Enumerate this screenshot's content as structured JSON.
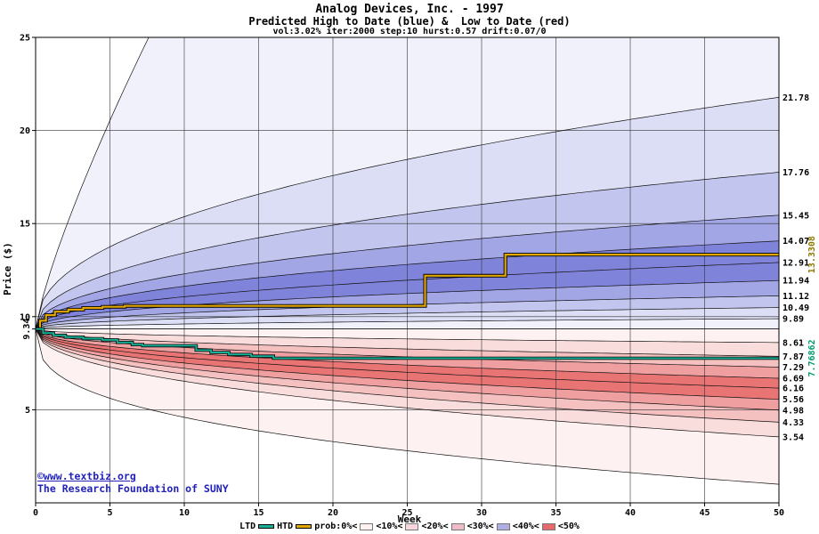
{
  "header": {
    "title": "Analog Devices, Inc. - 1997",
    "subtitle": "Predicted High to Date (blue) &  Low to Date (red)",
    "params": "vol:3.02% iter:2000 step:10 hurst:0.57 drift:0.07/0"
  },
  "watermark": {
    "line1": "©www.textbiz.org",
    "line2": "The Research Foundation of SUNY"
  },
  "chart_data": {
    "type": "area",
    "title": "Analog Devices, Inc. - 1997",
    "subtitle": "Predicted High to Date (blue) &  Low to Date (red)",
    "params_line": "vol:3.02% iter:2000 step:10 hurst:0.57 drift:0.07/0",
    "xlabel": "Week",
    "ylabel": "Price ($)",
    "xlim": [
      0,
      50
    ],
    "ylim": [
      0,
      25
    ],
    "grid": true,
    "x_ticks": [
      0,
      5,
      10,
      15,
      20,
      25,
      30,
      35,
      40,
      45,
      50
    ],
    "x_tick_labels": [
      "0",
      "5",
      "10",
      "15",
      "20",
      "25",
      "30",
      "35",
      "40",
      "45",
      "50"
    ],
    "y_ticks": [
      5,
      10,
      15,
      20,
      25
    ],
    "y_tick_labels": [
      "5",
      "10",
      "15",
      "20",
      "25"
    ],
    "start_price": 9.34,
    "start_label": "9.34",
    "quantile_alpha": 0.45,
    "envelope": {
      "top_end": 80,
      "top_alpha": 0.8,
      "bottom_end": 1.0,
      "bottom_alpha": 0.35
    },
    "high_quantiles": {
      "ends": [
        21.78,
        17.76,
        15.45,
        14.07,
        12.91,
        11.94,
        11.12,
        10.49,
        9.89
      ],
      "labels": [
        "21.78",
        "17.76",
        "15.45",
        "14.07",
        "12.91",
        "11.94",
        "11.12",
        "10.49",
        "9.89"
      ]
    },
    "low_quantiles": {
      "ends": [
        8.61,
        7.87,
        7.29,
        6.69,
        6.16,
        5.56,
        4.98,
        4.33,
        3.54
      ],
      "labels": [
        "8.61",
        "7.87",
        "7.29",
        "6.69",
        "6.16",
        "5.56",
        "4.98",
        "4.33",
        "3.54"
      ]
    },
    "band_colors_blue": [
      "#f0f1fb",
      "#dcdef5",
      "#c2c5ee",
      "#a2a6e5",
      "#7f84da"
    ],
    "band_colors_red": [
      "#fdf1f1",
      "#f9dcdc",
      "#f5c0c0",
      "#ef9f9f",
      "#e87474"
    ],
    "htd": {
      "name": "HTD",
      "color": "#e2a800",
      "final_value": 13.3308,
      "final_label": "13.3308",
      "label_color": "#8f7a00",
      "steps": [
        [
          0,
          9.34
        ],
        [
          0.3,
          9.78
        ],
        [
          0.7,
          10.08
        ],
        [
          1.3,
          10.27
        ],
        [
          2.2,
          10.38
        ],
        [
          3.2,
          10.47
        ],
        [
          4.5,
          10.53
        ],
        [
          6,
          10.58
        ],
        [
          26.2,
          12.2
        ],
        [
          31.6,
          13.3308
        ],
        [
          50,
          13.3308
        ]
      ]
    },
    "ltd": {
      "name": "LTD",
      "color": "#17b198",
      "final_value": 7.76862,
      "final_label": "7.76862",
      "label_color": "#009a70",
      "steps": [
        [
          0,
          9.34
        ],
        [
          0.5,
          9.12
        ],
        [
          1.2,
          9.0
        ],
        [
          2,
          8.9
        ],
        [
          3.2,
          8.82
        ],
        [
          4.5,
          8.75
        ],
        [
          5.5,
          8.62
        ],
        [
          6.5,
          8.5
        ],
        [
          7.2,
          8.44
        ],
        [
          10.8,
          8.2
        ],
        [
          11.8,
          8.08
        ],
        [
          13,
          7.97
        ],
        [
          14.5,
          7.88
        ],
        [
          16,
          7.77
        ],
        [
          17.5,
          7.76862
        ],
        [
          50,
          7.76862
        ]
      ]
    }
  },
  "legend": {
    "ltd_label": "LTD",
    "htd_label": "HTD",
    "prob_labels": [
      "prob:0%<",
      "<10%<",
      "<20%<",
      "<30%<",
      "<40%<",
      "<50%"
    ],
    "swatches": [
      "#fdf1f1",
      "#f6d8dc",
      "#eebbc6",
      "#aeb0e2",
      "#e66a6a"
    ]
  }
}
